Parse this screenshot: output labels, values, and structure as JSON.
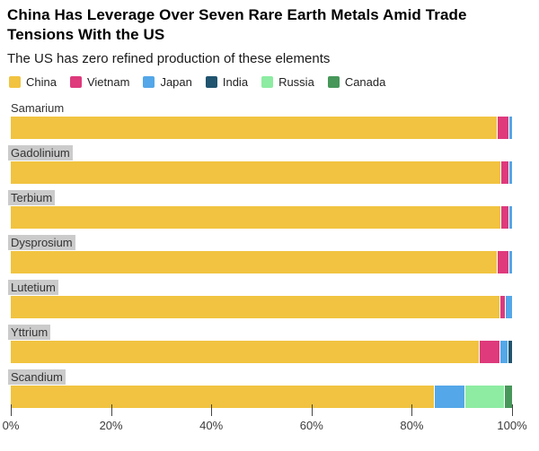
{
  "header": {
    "title_line1": "China Has Leverage Over Seven Rare Earth Metals Amid Trade",
    "title_line2": "Tensions With the US",
    "subtitle": "The US has zero refined production of these elements"
  },
  "chart_data": {
    "type": "bar",
    "stacked": true,
    "orientation": "horizontal",
    "title": "China Has Leverage Over Seven Rare Earth Metals Amid Trade Tensions With the US",
    "subtitle": "The US has zero refined production of these elements",
    "legend_position": "top",
    "categories": [
      "Samarium",
      "Gadolinium",
      "Terbium",
      "Dysprosium",
      "Lutetium",
      "Yttrium",
      "Scandium"
    ],
    "label_highlight": [
      false,
      true,
      true,
      true,
      true,
      true,
      true
    ],
    "series": [
      {
        "name": "China",
        "color": "#F1C340",
        "values": [
          97.2,
          97.9,
          97.8,
          97.1,
          97.6,
          93.5,
          84.6
        ]
      },
      {
        "name": "Vietnam",
        "color": "#DE3A7C",
        "values": [
          2.3,
          1.6,
          1.7,
          2.4,
          1.2,
          4.2,
          0
        ]
      },
      {
        "name": "Japan",
        "color": "#54A7E8",
        "values": [
          0.5,
          0.5,
          0.5,
          0.5,
          1.2,
          1.5,
          6.0
        ]
      },
      {
        "name": "India",
        "color": "#20546F",
        "values": [
          0,
          0,
          0,
          0,
          0,
          0.8,
          0
        ]
      },
      {
        "name": "Russia",
        "color": "#8DECA2",
        "values": [
          0,
          0,
          0,
          0,
          0,
          0,
          7.9
        ]
      },
      {
        "name": "Canada",
        "color": "#47975A",
        "values": [
          0,
          0,
          0,
          0,
          0,
          0,
          1.5
        ]
      }
    ],
    "x_ticks": [
      "0%",
      "20%",
      "40%",
      "60%",
      "80%",
      "100%"
    ],
    "xlim": [
      0,
      100
    ],
    "grid": false
  }
}
